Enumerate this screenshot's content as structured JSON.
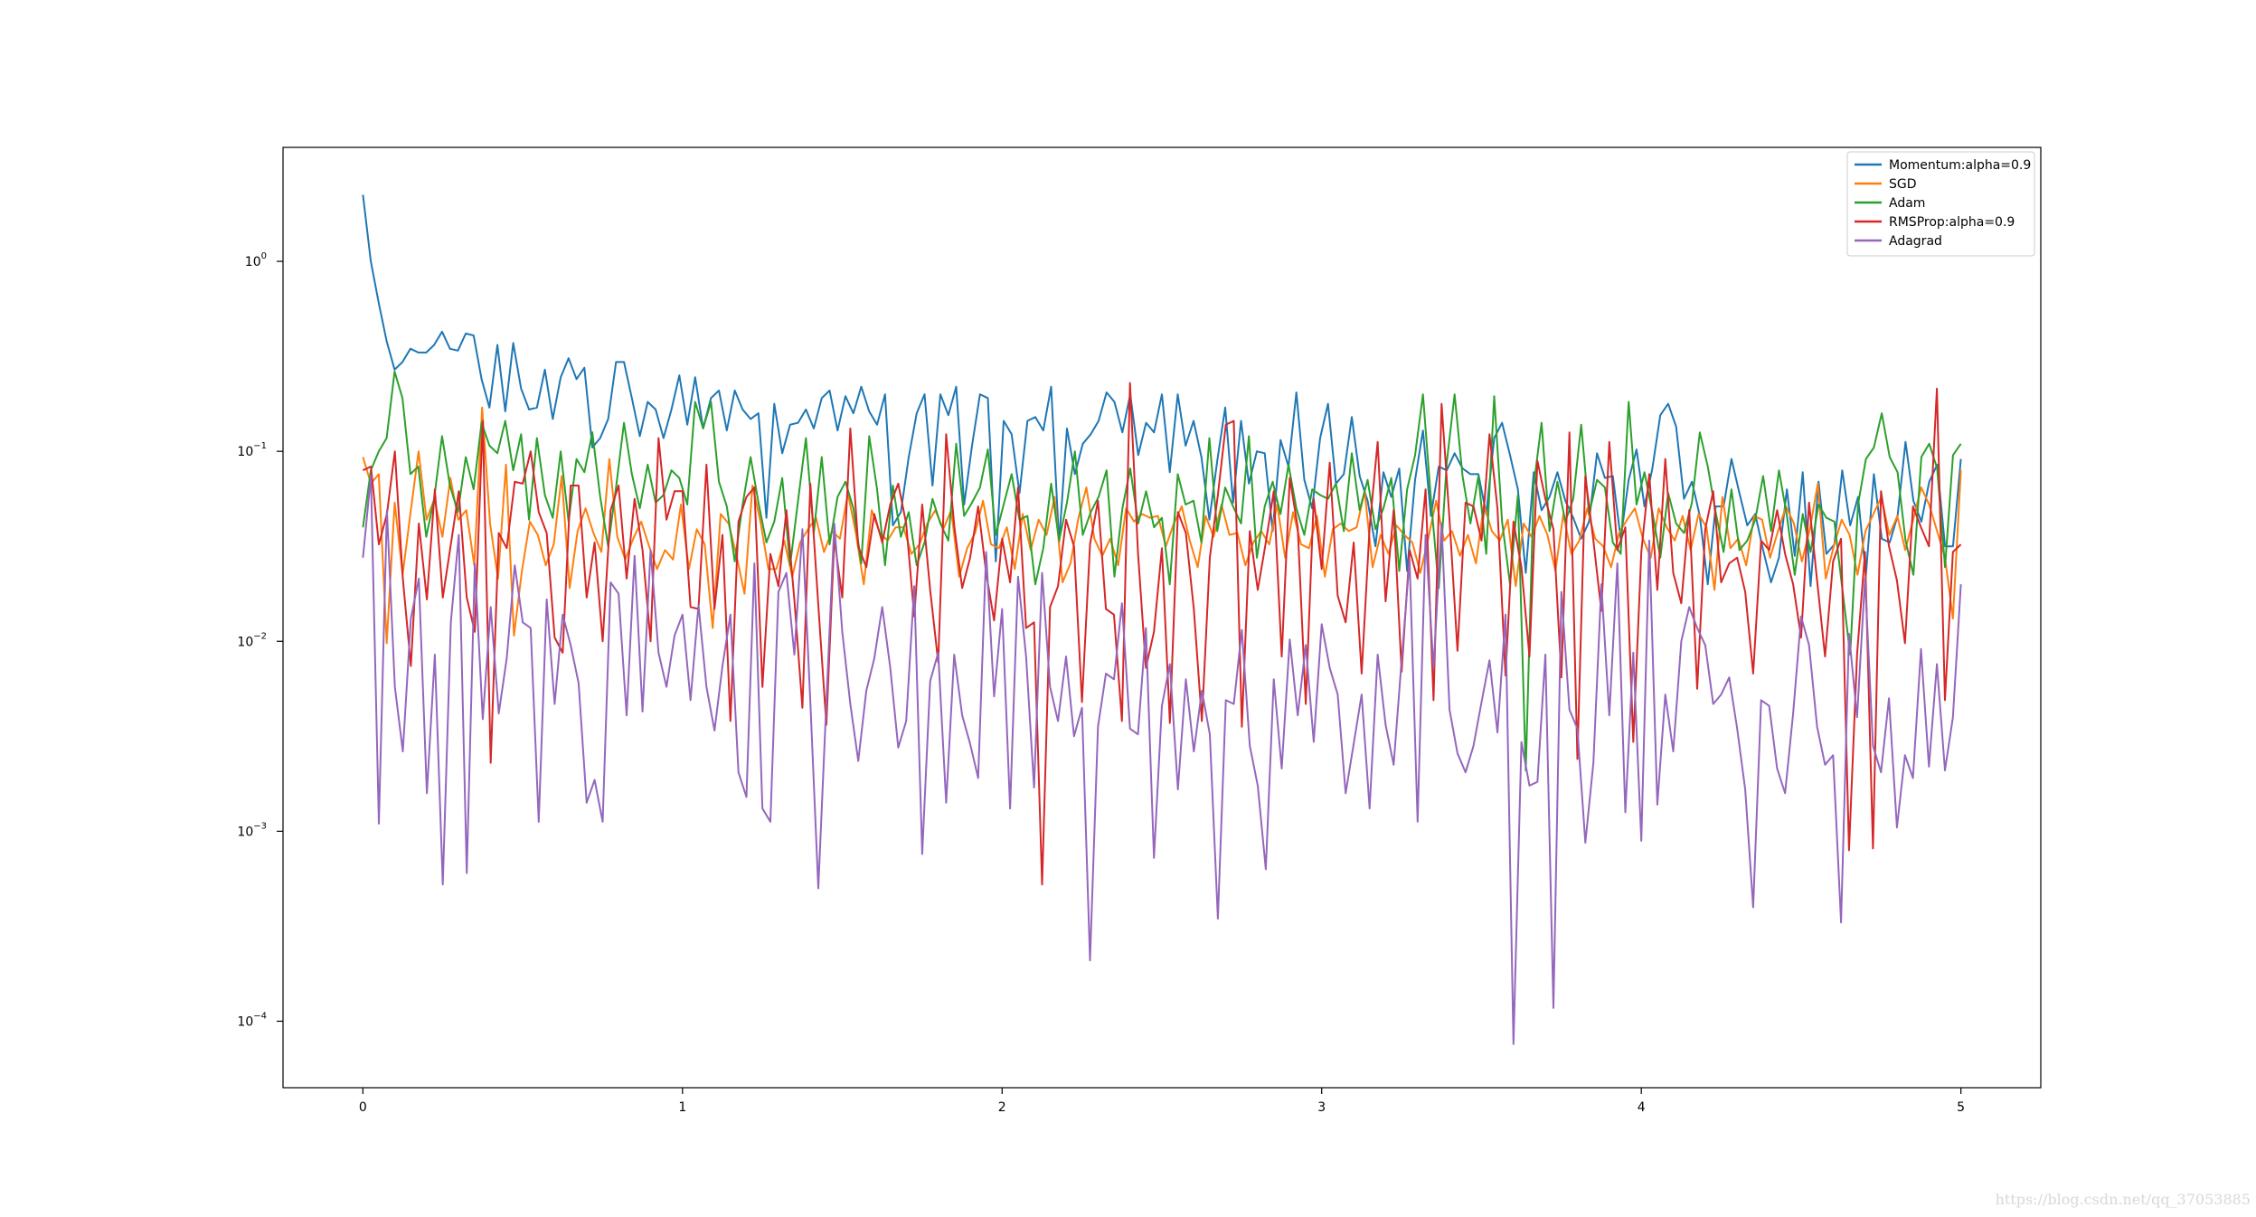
{
  "chart_data": {
    "type": "line",
    "title": "",
    "xlabel": "",
    "ylabel": "",
    "yscale": "log",
    "xlim": [
      -0.25,
      5.25
    ],
    "ylim_exponent": [
      -4.35,
      0.6
    ],
    "xticks": [
      0,
      1,
      2,
      3,
      4,
      5
    ],
    "ytick_exponents": [
      0,
      -1,
      -2,
      -3,
      -4
    ],
    "yticks": [
      "10^0",
      "10^-1",
      "10^-2",
      "10^-3",
      "10^-4"
    ],
    "legend_position": "top-right",
    "x_start": 0,
    "x_end": 5,
    "series": [
      {
        "name": "Momentum:alpha=0.9",
        "color": "#1f77b4",
        "log10_values": [
          0.35,
          0.0,
          -0.22,
          -0.42,
          -0.57,
          -0.53,
          -0.46,
          -0.48,
          -0.48,
          -0.44,
          -0.37,
          -0.46,
          -0.47,
          -0.38,
          -0.39,
          -0.62,
          -0.77,
          -0.44,
          -0.79,
          -0.43,
          -0.67,
          -0.78,
          -0.77,
          -0.57,
          -0.83,
          -0.61,
          -0.51,
          -0.62,
          -0.56,
          -0.98,
          -0.93,
          -0.83,
          -0.53,
          -0.53,
          -0.72,
          -0.92,
          -0.74,
          -0.78,
          -0.93,
          -0.78,
          -0.6,
          -0.86,
          -0.61,
          -0.88,
          -0.72,
          -0.68,
          -0.89,
          -0.68,
          -0.78,
          -0.83,
          -0.8,
          -1.35,
          -0.75,
          -1.01,
          -0.86,
          -0.85,
          -0.78,
          -0.88,
          -0.72,
          -0.68,
          -0.89,
          -0.71,
          -0.8,
          -0.66,
          -0.79,
          -0.86,
          -0.7,
          -1.39,
          -1.32,
          -1.03,
          -0.8,
          -0.7,
          -1.18,
          -0.7,
          -0.81,
          -0.66,
          -1.28,
          -0.97,
          -0.7,
          -0.72,
          -1.58,
          -0.84,
          -0.91,
          -1.22,
          -0.84,
          -0.82,
          -0.89,
          -0.66,
          -1.48,
          -0.88,
          -1.12,
          -0.96,
          -0.91,
          -0.84,
          -0.69,
          -0.74,
          -0.9,
          -0.7,
          -1.02,
          -0.85,
          -0.9,
          -0.7,
          -1.11,
          -0.7,
          -0.97,
          -0.84,
          -1.03,
          -1.36,
          -1.05,
          -0.77,
          -1.27,
          -0.84,
          -1.17,
          -1.0,
          -1.01,
          -1.42,
          -0.94,
          -1.08,
          -0.69,
          -1.15,
          -1.3,
          -0.93,
          -0.75,
          -1.17,
          -1.12,
          -0.82,
          -1.13,
          -1.26,
          -1.5,
          -1.11,
          -1.24,
          -1.09,
          -1.63,
          -1.15,
          -0.89,
          -1.34,
          -1.08,
          -1.1,
          -1.01,
          -1.09,
          -1.12,
          -1.12,
          -1.33,
          -0.93,
          -0.85,
          -1.02,
          -1.2,
          -1.64,
          -1.11,
          -1.31,
          -1.24,
          -1.11,
          -1.26,
          -1.35,
          -1.46,
          -1.37,
          -1.01,
          -1.14,
          -1.13,
          -1.46,
          -1.15,
          -0.99,
          -1.29,
          -1.09,
          -0.81,
          -0.75,
          -0.87,
          -1.25,
          -1.16,
          -1.34,
          -1.7,
          -1.29,
          -1.29,
          -1.04,
          -1.22,
          -1.39,
          -1.33,
          -1.52,
          -1.69,
          -1.56,
          -1.2,
          -1.55,
          -1.11,
          -1.71,
          -1.16,
          -1.54,
          -1.49,
          -1.1,
          -1.39,
          -1.24,
          -1.65,
          -1.12,
          -1.46,
          -1.48,
          -1.34,
          -0.95,
          -1.26,
          -1.37,
          -1.16,
          -1.07,
          -1.5,
          -1.5,
          -1.04
        ],
        "note": ""
      },
      {
        "name": "SGD",
        "color": "#ff7f0e",
        "log10_values": [
          -1.03,
          -1.17,
          -1.12,
          -2.01,
          -1.27,
          -1.65,
          -1.32,
          -1.0,
          -1.36,
          -1.25,
          -1.45,
          -1.14,
          -1.36,
          -1.31,
          -1.6,
          -0.77,
          -1.38,
          -1.67,
          -1.07,
          -1.97,
          -1.63,
          -1.37,
          -1.44,
          -1.6,
          -1.49,
          -1.13,
          -1.72,
          -1.42,
          -1.3,
          -1.43,
          -1.53,
          -1.04,
          -1.45,
          -1.57,
          -1.46,
          -1.37,
          -1.5,
          -1.62,
          -1.52,
          -1.57,
          -1.28,
          -1.62,
          -1.41,
          -1.49,
          -1.93,
          -1.33,
          -1.38,
          -1.55,
          -1.75,
          -1.18,
          -1.37,
          -1.62,
          -1.62,
          -1.47,
          -1.66,
          -1.48,
          -1.41,
          -1.35,
          -1.53,
          -1.42,
          -1.46,
          -1.22,
          -1.43,
          -1.7,
          -1.31,
          -1.43,
          -1.47,
          -1.4,
          -1.4,
          -1.54,
          -1.49,
          -1.38,
          -1.31,
          -1.41,
          -1.31,
          -1.66,
          -1.51,
          -1.43,
          -1.26,
          -1.49,
          -1.51,
          -1.4,
          -1.62,
          -1.33,
          -1.52,
          -1.36,
          -1.44,
          -1.24,
          -1.69,
          -1.59,
          -1.35,
          -1.19,
          -1.46,
          -1.55,
          -1.46,
          -1.6,
          -1.3,
          -1.37,
          -1.33,
          -1.35,
          -1.34,
          -1.5,
          -1.38,
          -1.29,
          -1.47,
          -1.61,
          -1.34,
          -1.45,
          -1.28,
          -1.44,
          -1.43,
          -1.6,
          -1.48,
          -1.42,
          -1.49,
          -1.28,
          -1.56,
          -1.32,
          -1.49,
          -1.51,
          -1.34,
          -1.66,
          -1.41,
          -1.38,
          -1.42,
          -1.4,
          -1.21,
          -1.61,
          -1.44,
          -1.54,
          -1.39,
          -1.44,
          -1.48,
          -1.64,
          -1.46,
          -1.26,
          -1.47,
          -1.42,
          -1.55,
          -1.44,
          -1.59,
          -1.28,
          -1.42,
          -1.47,
          -1.36,
          -1.71,
          -1.38,
          -1.45,
          -1.34,
          -1.44,
          -1.63,
          -1.33,
          -1.54,
          -1.47,
          -1.3,
          -1.46,
          -1.5,
          -1.61,
          -1.43,
          -1.36,
          -1.3,
          -1.46,
          -1.56,
          -1.3,
          -1.4,
          -1.47,
          -1.34,
          -1.52,
          -1.33,
          -1.4,
          -1.73,
          -1.24,
          -1.51,
          -1.46,
          -1.6,
          -1.34,
          -1.36,
          -1.56,
          -1.42,
          -1.29,
          -1.38,
          -1.58,
          -1.41,
          -1.17,
          -1.67,
          -1.5,
          -1.36,
          -1.44,
          -1.65,
          -1.42,
          -1.33,
          -1.24,
          -1.44,
          -1.34,
          -1.52,
          -1.36,
          -1.19,
          -1.28,
          -1.42,
          -1.56,
          -1.88,
          -1.1
        ],
        "note": ""
      },
      {
        "name": "Adam",
        "color": "#2ca02c",
        "log10_values": [
          -1.4,
          -1.1,
          -1.0,
          -0.93,
          -0.58,
          -0.72,
          -1.12,
          -1.08,
          -1.45,
          -1.25,
          -0.92,
          -1.18,
          -1.32,
          -1.03,
          -1.2,
          -0.85,
          -0.97,
          -1.01,
          -0.84,
          -1.1,
          -0.91,
          -1.36,
          -0.93,
          -1.23,
          -1.35,
          -1.0,
          -1.37,
          -1.04,
          -1.11,
          -0.9,
          -1.24,
          -1.5,
          -1.19,
          -0.85,
          -1.12,
          -1.3,
          -1.07,
          -1.27,
          -1.23,
          -1.1,
          -1.14,
          -1.28,
          -0.74,
          -0.88,
          -0.74,
          -1.16,
          -1.29,
          -1.58,
          -1.28,
          -1.03,
          -1.27,
          -1.48,
          -1.37,
          -1.14,
          -1.6,
          -1.26,
          -0.93,
          -1.43,
          -1.03,
          -1.49,
          -1.24,
          -1.16,
          -1.3,
          -1.59,
          -0.92,
          -1.2,
          -1.6,
          -1.18,
          -1.45,
          -1.32,
          -1.6,
          -1.48,
          -1.25,
          -1.38,
          -1.47,
          -0.96,
          -1.34,
          -1.27,
          -1.19,
          -0.99,
          -1.44,
          -1.28,
          -1.12,
          -1.36,
          -1.34,
          -1.7,
          -1.51,
          -1.17,
          -1.47,
          -1.27,
          -1.0,
          -1.44,
          -1.32,
          -1.24,
          -1.1,
          -1.66,
          -1.3,
          -1.09,
          -1.38,
          -1.21,
          -1.4,
          -1.35,
          -1.7,
          -1.12,
          -1.28,
          -1.26,
          -1.48,
          -0.93,
          -1.42,
          -1.19,
          -1.29,
          -1.38,
          -0.92,
          -1.56,
          -1.29,
          -1.16,
          -1.33,
          -1.07,
          -1.3,
          -1.44,
          -1.2,
          -1.23,
          -1.25,
          -1.17,
          -1.42,
          -1.01,
          -1.31,
          -1.15,
          -1.41,
          -1.3,
          -1.14,
          -1.63,
          -1.2,
          -1.02,
          -0.7,
          -1.25,
          -1.72,
          -1.06,
          -0.7,
          -1.13,
          -1.38,
          -1.13,
          -1.54,
          -0.71,
          -1.37,
          -1.7,
          -1.23,
          -2.68,
          -1.18,
          -0.85,
          -1.42,
          -1.16,
          -1.37,
          -1.25,
          -0.86,
          -1.33,
          -1.15,
          -1.19,
          -1.48,
          -1.54,
          -0.74,
          -1.28,
          -1.11,
          -1.32,
          -1.56,
          -1.22,
          -1.38,
          -1.43,
          -1.27,
          -0.9,
          -1.08,
          -1.32,
          -1.53,
          -1.2,
          -1.52,
          -1.47,
          -1.36,
          -1.13,
          -1.42,
          -1.1,
          -1.34,
          -1.65,
          -1.33,
          -1.53,
          -1.28,
          -1.35,
          -1.37,
          -1.72,
          -2.07,
          -1.28,
          -1.04,
          -0.98,
          -0.8,
          -1.03,
          -1.11,
          -1.47,
          -1.65,
          -1.03,
          -0.96,
          -1.09,
          -1.61,
          -1.02,
          -0.96
        ],
        "note": ""
      },
      {
        "name": "RMSProp:alpha=0.9",
        "color": "#d62728",
        "log10_values": [
          -1.1,
          -1.08,
          -1.49,
          -1.33,
          -1.0,
          -1.67,
          -2.13,
          -1.38,
          -1.78,
          -1.2,
          -1.77,
          -1.49,
          -1.21,
          -1.77,
          -1.95,
          -0.84,
          -2.64,
          -1.43,
          -1.51,
          -1.16,
          -1.17,
          -1.0,
          -1.32,
          -1.43,
          -1.98,
          -2.06,
          -1.18,
          -1.18,
          -1.77,
          -1.48,
          -2.0,
          -1.31,
          -1.18,
          -1.67,
          -1.25,
          -1.52,
          -2.0,
          -0.93,
          -1.36,
          -1.21,
          -1.21,
          -1.82,
          -1.83,
          -1.07,
          -1.83,
          -1.44,
          -2.42,
          -1.37,
          -1.24,
          -1.19,
          -2.24,
          -1.54,
          -1.71,
          -1.31,
          -1.78,
          -2.35,
          -1.17,
          -1.81,
          -2.44,
          -1.46,
          -1.77,
          -0.88,
          -1.5,
          -1.61,
          -1.33,
          -1.48,
          -1.28,
          -1.17,
          -1.38,
          -1.87,
          -1.28,
          -1.73,
          -2.11,
          -0.91,
          -1.39,
          -1.72,
          -1.56,
          -1.29,
          -1.64,
          -1.89,
          -1.46,
          -1.69,
          -1.19,
          -1.93,
          -1.9,
          -3.28,
          -1.82,
          -1.71,
          -1.36,
          -1.5,
          -2.32,
          -1.49,
          -1.26,
          -1.83,
          -1.86,
          -2.42,
          -0.64,
          -1.53,
          -2.14,
          -1.95,
          -1.51,
          -2.43,
          -1.32,
          -1.43,
          -1.83,
          -2.42,
          -1.56,
          -1.23,
          -0.86,
          -0.84,
          -2.45,
          -1.42,
          -1.73,
          -1.48,
          -1.21,
          -2.08,
          -1.14,
          -1.4,
          -2.33,
          -1.25,
          -1.62,
          -1.06,
          -1.76,
          -1.9,
          -1.48,
          -2.17,
          -1.4,
          -0.95,
          -1.79,
          -1.31,
          -2.16,
          -1.52,
          -1.67,
          -1.2,
          -2.31,
          -0.75,
          -1.36,
          -2.05,
          -1.27,
          -1.29,
          -1.47,
          -0.91,
          -1.3,
          -2.18,
          -1.37,
          -1.61,
          -2.08,
          -1.05,
          -1.25,
          -1.41,
          -2.19,
          -0.9,
          -2.62,
          -1.13,
          -1.47,
          -1.84,
          -0.95,
          -1.52,
          -1.4,
          -2.53,
          -1.53,
          -1.12,
          -1.73,
          -1.04,
          -1.64,
          -1.8,
          -1.31,
          -2.25,
          -1.41,
          -1.21,
          -1.69,
          -1.59,
          -1.56,
          -1.74,
          -2.17,
          -1.47,
          -1.52,
          -1.31,
          -1.54,
          -1.7,
          -1.98,
          -1.27,
          -1.68,
          -2.08,
          -1.58,
          -1.46,
          -3.1,
          -2.07,
          -1.53,
          -3.09,
          -1.21,
          -1.5,
          -1.68,
          -2.01,
          -1.29,
          -1.4,
          -1.5,
          -0.67,
          -2.31,
          -1.53,
          -1.49
        ],
        "note": ""
      },
      {
        "name": "Adagrad",
        "color": "#9467bd",
        "log10_values": [
          -1.56,
          -1.13,
          -2.96,
          -1.31,
          -2.24,
          -2.58,
          -1.88,
          -1.67,
          -2.8,
          -2.07,
          -3.28,
          -1.9,
          -1.44,
          -3.22,
          -1.59,
          -2.41,
          -1.82,
          -2.38,
          -2.09,
          -1.6,
          -1.9,
          -1.93,
          -2.95,
          -1.78,
          -2.33,
          -1.86,
          -2.02,
          -2.22,
          -2.85,
          -2.73,
          -2.95,
          -1.69,
          -1.75,
          -2.39,
          -1.55,
          -2.37,
          -1.52,
          -2.06,
          -2.24,
          -1.97,
          -1.86,
          -2.31,
          -1.81,
          -2.24,
          -2.47,
          -2.13,
          -1.86,
          -2.69,
          -2.82,
          -1.59,
          -2.88,
          -2.95,
          -1.74,
          -1.64,
          -2.07,
          -1.41,
          -2.32,
          -3.3,
          -2.32,
          -1.38,
          -1.95,
          -2.33,
          -2.63,
          -2.26,
          -2.09,
          -1.82,
          -2.14,
          -2.56,
          -2.42,
          -1.71,
          -3.12,
          -2.21,
          -2.06,
          -2.85,
          -2.07,
          -2.39,
          -2.54,
          -2.72,
          -1.53,
          -2.29,
          -1.83,
          -2.88,
          -1.66,
          -2.08,
          -2.77,
          -1.64,
          -2.24,
          -2.42,
          -2.08,
          -2.5,
          -2.35,
          -3.68,
          -2.45,
          -2.17,
          -2.2,
          -1.8,
          -2.46,
          -2.49,
          -1.93,
          -3.14,
          -2.34,
          -2.12,
          -2.78,
          -2.2,
          -2.58,
          -2.26,
          -2.49,
          -3.46,
          -2.31,
          -2.33,
          -1.94,
          -2.55,
          -2.76,
          -3.2,
          -2.2,
          -2.67,
          -1.99,
          -2.39,
          -2.02,
          -2.53,
          -1.91,
          -2.14,
          -2.28,
          -2.8,
          -2.54,
          -2.28,
          -2.88,
          -2.07,
          -2.44,
          -2.65,
          -2.1,
          -1.57,
          -2.95,
          -1.44,
          -2.14,
          -1.38,
          -2.36,
          -2.59,
          -2.69,
          -2.55,
          -2.32,
          -2.1,
          -2.48,
          -1.86,
          -4.12,
          -2.53,
          -2.76,
          -2.74,
          -2.07,
          -3.93,
          -1.74,
          -2.36,
          -2.46,
          -3.06,
          -2.64,
          -1.7,
          -2.39,
          -1.59,
          -2.9,
          -2.06,
          -3.05,
          -1.47,
          -2.86,
          -2.28,
          -2.58,
          -2.0,
          -1.82,
          -1.93,
          -2.02,
          -2.33,
          -2.28,
          -2.19,
          -2.46,
          -2.78,
          -3.4,
          -2.31,
          -2.34,
          -2.67,
          -2.8,
          -2.38,
          -1.87,
          -2.02,
          -2.45,
          -2.65,
          -2.6,
          -3.48,
          -1.96,
          -2.4,
          -1.67,
          -2.55,
          -2.69,
          -2.3,
          -2.98,
          -2.6,
          -2.72,
          -2.04,
          -2.66,
          -2.12,
          -2.68,
          -2.4,
          -1.7
        ],
        "note": ""
      }
    ]
  },
  "watermark": "https://blog.csdn.net/qq_37053885"
}
